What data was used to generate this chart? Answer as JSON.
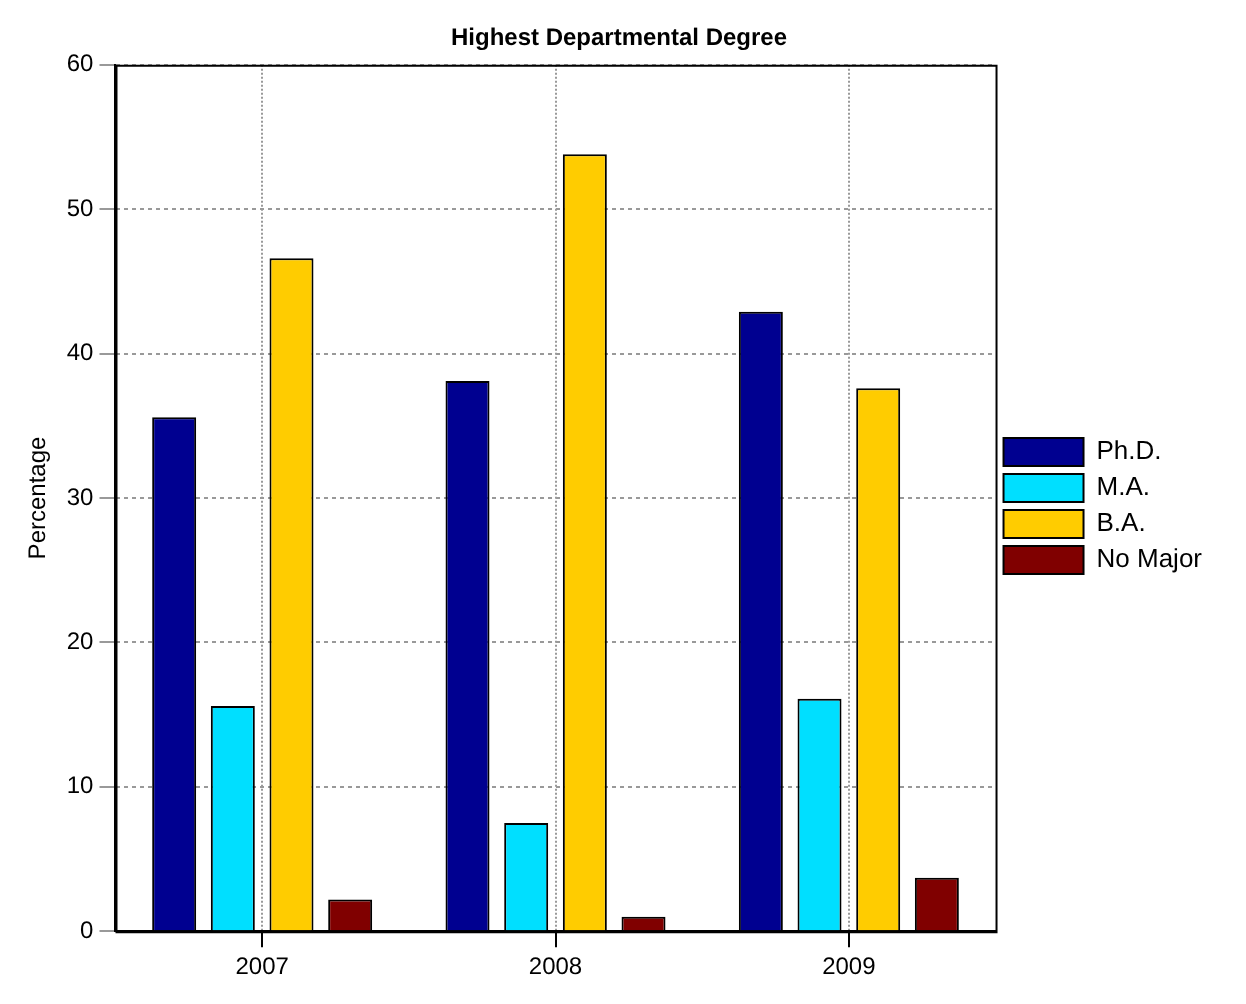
{
  "chart_data": {
    "type": "bar",
    "title": "Highest Departmental Degree",
    "ylabel": "Percentage",
    "categories": [
      "2007",
      "2008",
      "2009"
    ],
    "series": [
      {
        "name": "Ph.D.",
        "color": "#000090",
        "values": [
          35.6,
          38.1,
          42.9
        ]
      },
      {
        "name": "M.A.",
        "color": "#00dfff",
        "values": [
          15.6,
          7.5,
          16.1
        ]
      },
      {
        "name": "B.A.",
        "color": "#ffcc00",
        "values": [
          46.6,
          53.8,
          37.6
        ]
      },
      {
        "name": "No Major",
        "color": "#800000",
        "values": [
          2.2,
          1.0,
          3.7
        ]
      }
    ],
    "ylim": [
      0,
      60
    ],
    "yticks": [
      0,
      10,
      20,
      30,
      40,
      50,
      60
    ],
    "grid": true,
    "legend": "right"
  }
}
